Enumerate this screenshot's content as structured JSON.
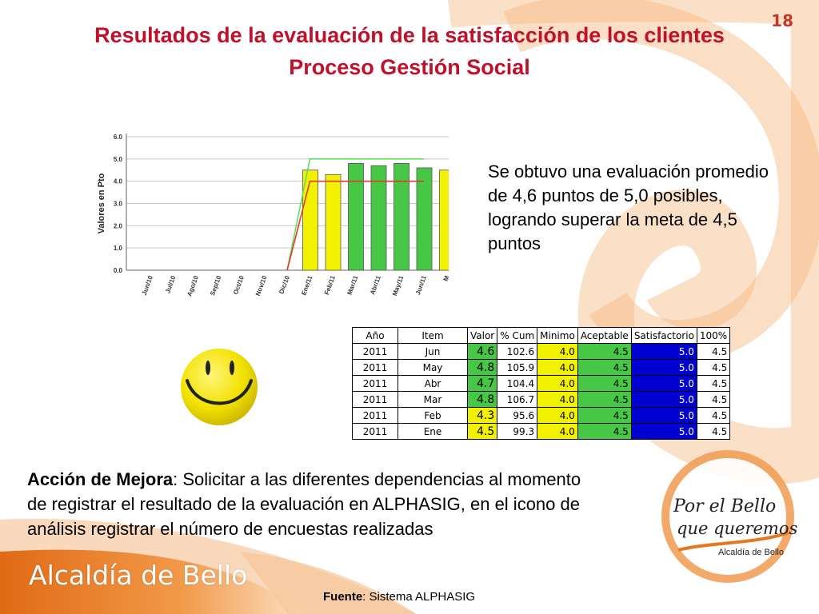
{
  "page_number": "18",
  "title": {
    "line1": "Resultados de la evaluación de la satisfacción de los clientes",
    "line2": "Proceso Gestión Social"
  },
  "summary": "Se obtuvo una evaluación promedio de 4,6 puntos de 5,0 posibles, logrando superar la meta de 4,5 puntos",
  "chart_data": {
    "type": "bar",
    "ylabel": "Valores en Pto",
    "ylim": [
      0,
      6.0
    ],
    "yticks": [
      "0.0",
      "1.0",
      "2.0",
      "3.0",
      "4.0",
      "5.0",
      "6.0"
    ],
    "categories": [
      "Jun/10",
      "Jul/10",
      "Ago/10",
      "Sep/10",
      "Oct/10",
      "Nov/10",
      "Dic/10",
      "Ene/11",
      "Feb/11",
      "Mar/11",
      "Abr/11",
      "May/11",
      "Jun/11",
      "M"
    ],
    "values": [
      null,
      null,
      null,
      null,
      null,
      null,
      null,
      4.5,
      4.3,
      4.8,
      4.7,
      4.8,
      4.6,
      4.5
    ],
    "bar_colors": [
      null,
      null,
      null,
      null,
      null,
      null,
      null,
      "#f2f200",
      "#f2f200",
      "#46c846",
      "#46c846",
      "#46c846",
      "#46c846",
      "#f2f200"
    ],
    "lines": [
      {
        "color": "#5ee05e",
        "values": [
          null,
          null,
          null,
          null,
          null,
          null,
          0,
          5.0,
          5.0,
          5.0,
          5.0,
          5.0,
          5.0
        ]
      },
      {
        "color": "#e03a2a",
        "values": [
          null,
          null,
          null,
          null,
          null,
          null,
          0,
          4.0,
          4.0,
          4.0,
          4.0,
          4.0,
          4.0
        ]
      }
    ],
    "grid": true
  },
  "table": {
    "headers": [
      "Año",
      "Item",
      "Valor",
      "% Cum",
      "Minimo",
      "Aceptable",
      "Satisfactorio",
      "100%"
    ],
    "rows": [
      [
        "2011",
        "Jun",
        "4.6",
        "102.6",
        "4.0",
        "4.5",
        "5.0",
        "4.5"
      ],
      [
        "2011",
        "May",
        "4.8",
        "105.9",
        "4.0",
        "4.5",
        "5.0",
        "4.5"
      ],
      [
        "2011",
        "Abr",
        "4.7",
        "104.4",
        "4.0",
        "4.5",
        "5.0",
        "4.5"
      ],
      [
        "2011",
        "Mar",
        "4.8",
        "106.7",
        "4.0",
        "4.5",
        "5.0",
        "4.5"
      ],
      [
        "2011",
        "Feb",
        "4.3",
        "95.6",
        "4.0",
        "4.5",
        "5.0",
        "4.5"
      ],
      [
        "2011",
        "Ene",
        "4.5",
        "99.3",
        "4.0",
        "4.5",
        "5.0",
        "4.5"
      ]
    ],
    "valor_colors": [
      "#46c846",
      "#46c846",
      "#46c846",
      "#46c846",
      "#f2f200",
      "#f2f200"
    ],
    "minimo_color": "#f2f200",
    "aceptable_color": "#46c846",
    "satisfactorio_color": "#0000d0"
  },
  "action": {
    "label": "Acción de Mejora",
    "text": ": Solicitar a las diferentes dependencias al momento de registrar el resultado de la evaluación en ALPHASIG, en el icono de análisis registrar el número de encuestas realizadas"
  },
  "footer": {
    "logo_text": "Alcaldía de Bello",
    "source_label": "Fuente",
    "source_text": ": Sistema ALPHASIG"
  },
  "campaign": {
    "line1": "Por el Bello",
    "line2": "que queremos",
    "line3": "Alcaldía de Bello"
  },
  "colors": {
    "title": "#c0102a",
    "swirl": "#f4a25a",
    "footer_band": "#e8761e"
  }
}
